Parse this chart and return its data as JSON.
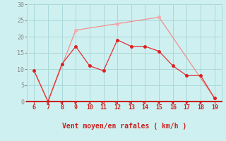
{
  "xlabel": "Vent moyen/en rafales ( km/h )",
  "bg_color": "#cff0f0",
  "grid_color": "#aad8d8",
  "line_moyen_x": [
    6,
    7,
    8,
    9,
    10,
    11,
    12,
    13,
    14,
    15,
    16,
    17,
    18,
    19
  ],
  "line_moyen_y": [
    9.5,
    0.0,
    11.5,
    17.0,
    11.0,
    9.5,
    19.0,
    17.0,
    17.0,
    15.5,
    11.0,
    8.0,
    8.0,
    1.0
  ],
  "line_moyen_color": "#e03030",
  "line_rafales_x": [
    6,
    7,
    9,
    12,
    15,
    19
  ],
  "line_rafales_y": [
    9.5,
    0.0,
    22.0,
    24.0,
    26.0,
    1.0
  ],
  "line_rafales_color": "#f09090",
  "marker_moyen": "#dd2020",
  "marker_rafales": "#f5aaaa",
  "xlim": [
    5.5,
    19.5
  ],
  "ylim": [
    0,
    30
  ],
  "xticks": [
    6,
    7,
    8,
    9,
    10,
    11,
    12,
    13,
    14,
    15,
    16,
    17,
    18,
    19
  ],
  "yticks": [
    0,
    5,
    10,
    15,
    20,
    25,
    30
  ],
  "spine_color": "#cc2020",
  "tick_color_x": "#cc2020",
  "tick_color_y": "#888888",
  "xlabel_color": "#cc2020",
  "wind_arrows_x": [
    7,
    8,
    9,
    10,
    11,
    12,
    13,
    14,
    15,
    16,
    17,
    18
  ],
  "wind_dirs": [
    225,
    225,
    225,
    45,
    90,
    90,
    90,
    90,
    225,
    225,
    225,
    225
  ]
}
